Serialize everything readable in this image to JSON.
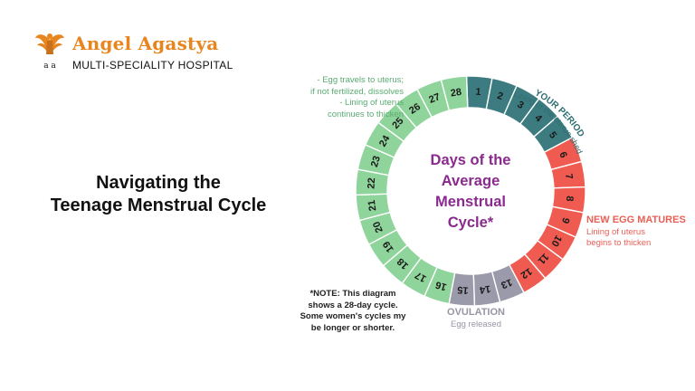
{
  "header": {
    "logo_name": "Angel Agastya",
    "logo_subtitle": "MULTI-SPECIALITY HOSPITAL",
    "logo_letters": "a a"
  },
  "slide": {
    "title_lines": [
      "Navigating the",
      "Teenage Menstrual Cycle"
    ]
  },
  "diagram": {
    "center_lines": [
      "Days of the",
      "Average",
      "Menstrual",
      "Cycle*"
    ],
    "days": [
      "1",
      "2",
      "3",
      "4",
      "5",
      "6",
      "7",
      "8",
      "9",
      "10",
      "11",
      "12",
      "13",
      "14",
      "15",
      "16",
      "17",
      "18",
      "19",
      "20",
      "21",
      "22",
      "23",
      "24",
      "25",
      "26",
      "27",
      "28"
    ],
    "phase_colors": {
      "period": "#3c7c80",
      "egg_matures": "#ef5b50",
      "ovulation": "#9b9aab",
      "luteal": "#8fd49b"
    },
    "period": {
      "heading": "YOUR PERIOD",
      "detail": "Lining of the uterus sheds",
      "days": [
        1,
        5
      ]
    },
    "egg": {
      "heading": "NEW EGG MATURES",
      "detail_lines": [
        "Lining of uterus",
        "begins to thicken"
      ],
      "days": [
        6,
        12
      ]
    },
    "ovulation": {
      "heading": "OVULATION",
      "detail": "Egg released",
      "days": [
        13,
        15
      ]
    },
    "luteal": {
      "detail_lines": [
        "- Egg travels to uterus;",
        "if not fertilized, dissolves",
        "- Lining of uterus",
        "continues to thicken"
      ],
      "days": [
        16,
        28
      ]
    },
    "note_lines": [
      "*NOTE: This diagram",
      "shows a 28-day cycle.",
      "Some women's cycles my",
      "be longer or shorter."
    ]
  }
}
